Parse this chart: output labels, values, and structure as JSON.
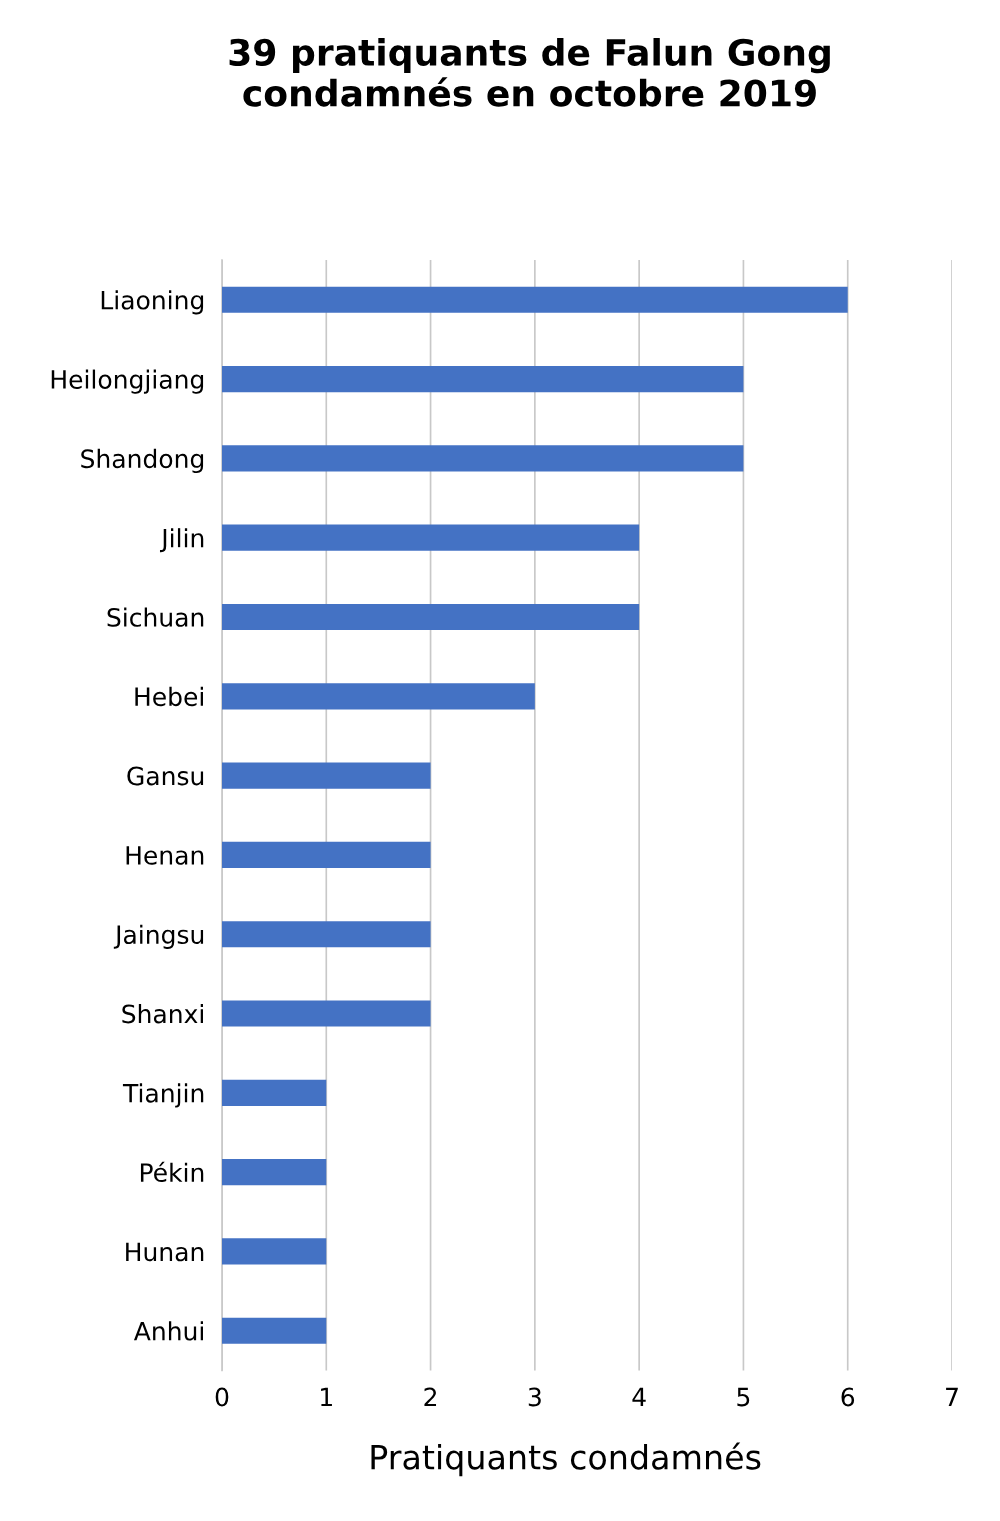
{
  "chart_data": {
    "type": "bar",
    "orientation": "horizontal",
    "title": "39 pratiquants de Falun Gong\ncondamnés en octobre 2019",
    "xlabel": "Pratiquants condamnés",
    "categories": [
      "Liaoning",
      "Heilongjiang",
      "Shandong",
      "Jilin",
      "Sichuan",
      "Hebei",
      "Gansu",
      "Henan",
      "Jaingsu",
      "Shanxi",
      "Tianjin",
      "Pékin",
      "Hunan",
      "Anhui"
    ],
    "values": [
      6,
      5,
      5,
      4,
      4,
      3,
      2,
      2,
      2,
      2,
      1,
      1,
      1,
      1
    ],
    "color": "#4472c4",
    "xlim": [
      0,
      7
    ],
    "xticks": [
      0,
      1,
      2,
      3,
      4,
      5,
      6,
      7
    ],
    "grid": "x",
    "legend": false
  }
}
